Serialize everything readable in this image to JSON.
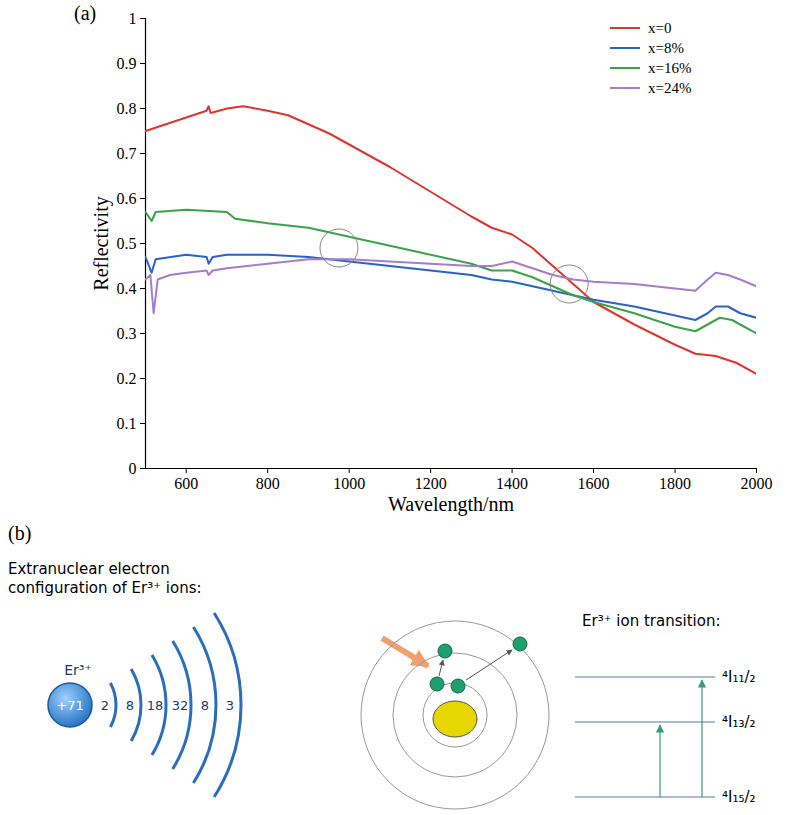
{
  "chart_data": {
    "type": "line",
    "panel": "(a)",
    "x_label": "Wavelength/nm",
    "y_label": "Reflectivity",
    "xlim": [
      500,
      2000
    ],
    "xticks": [
      600,
      800,
      1000,
      1200,
      1400,
      1600,
      1800,
      2000
    ],
    "ylim": [
      0,
      1
    ],
    "yticks": [
      0,
      0.1,
      0.2,
      0.3,
      0.4,
      0.5,
      0.6,
      0.7,
      0.8,
      0.9,
      1
    ],
    "grid": false,
    "legend": "top-right",
    "series": [
      {
        "name": "x=0",
        "color": "#e0342f",
        "x": [
          500,
          550,
          600,
          650,
          655,
          660,
          700,
          740,
          800,
          850,
          900,
          950,
          1000,
          1100,
          1200,
          1300,
          1350,
          1400,
          1450,
          1500,
          1550,
          1600,
          1700,
          1800,
          1850,
          1900,
          1950,
          2000
        ],
        "values": [
          0.75,
          0.765,
          0.78,
          0.795,
          0.805,
          0.79,
          0.8,
          0.805,
          0.795,
          0.785,
          0.765,
          0.745,
          0.72,
          0.67,
          0.615,
          0.56,
          0.535,
          0.52,
          0.49,
          0.45,
          0.41,
          0.37,
          0.32,
          0.275,
          0.255,
          0.25,
          0.235,
          0.21
        ]
      },
      {
        "name": "x=8%",
        "color": "#2a62c9",
        "x": [
          500,
          515,
          525,
          600,
          650,
          655,
          665,
          700,
          800,
          900,
          1000,
          1100,
          1200,
          1300,
          1350,
          1400,
          1450,
          1500,
          1550,
          1600,
          1700,
          1800,
          1850,
          1880,
          1900,
          1930,
          1960,
          2000
        ],
        "values": [
          0.47,
          0.435,
          0.465,
          0.475,
          0.47,
          0.455,
          0.47,
          0.475,
          0.475,
          0.47,
          0.46,
          0.45,
          0.44,
          0.43,
          0.42,
          0.415,
          0.405,
          0.395,
          0.385,
          0.375,
          0.36,
          0.34,
          0.33,
          0.345,
          0.36,
          0.36,
          0.345,
          0.335
        ]
      },
      {
        "name": "x=16%",
        "color": "#3aa34a",
        "x": [
          500,
          515,
          525,
          600,
          700,
          720,
          800,
          900,
          1000,
          1100,
          1200,
          1300,
          1350,
          1400,
          1450,
          1500,
          1550,
          1600,
          1700,
          1800,
          1850,
          1880,
          1910,
          1940,
          1970,
          2000
        ],
        "values": [
          0.57,
          0.55,
          0.57,
          0.575,
          0.57,
          0.555,
          0.545,
          0.535,
          0.515,
          0.495,
          0.475,
          0.455,
          0.44,
          0.44,
          0.425,
          0.405,
          0.385,
          0.37,
          0.345,
          0.315,
          0.305,
          0.32,
          0.335,
          0.33,
          0.315,
          0.3
        ]
      },
      {
        "name": "x=24%",
        "color": "#a77cc8",
        "x": [
          500,
          512,
          520,
          530,
          560,
          600,
          650,
          655,
          665,
          700,
          800,
          900,
          1000,
          1100,
          1200,
          1300,
          1350,
          1400,
          1450,
          1500,
          1550,
          1600,
          1700,
          1800,
          1850,
          1880,
          1900,
          1930,
          1960,
          2000
        ],
        "values": [
          0.42,
          0.43,
          0.345,
          0.42,
          0.43,
          0.435,
          0.44,
          0.43,
          0.44,
          0.445,
          0.455,
          0.465,
          0.465,
          0.46,
          0.455,
          0.45,
          0.45,
          0.46,
          0.445,
          0.43,
          0.42,
          0.415,
          0.41,
          0.4,
          0.395,
          0.42,
          0.435,
          0.43,
          0.42,
          0.405
        ]
      }
    ],
    "circled_points": [
      {
        "x": 975,
        "y": 0.49
      },
      {
        "x": 1540,
        "y": 0.41
      }
    ]
  },
  "diagram": {
    "panel": "(b)",
    "configuration": {
      "title": "Extranuclear electron configuration of Er³⁺ ions:",
      "ion": "Er³⁺",
      "nucleus": "+71",
      "shells": [
        2,
        8,
        18,
        32,
        8,
        3
      ]
    },
    "transition": {
      "title": "Er³⁺ ion transition:",
      "levels": [
        "⁴I₁₁/₂",
        "⁴I₁₃/₂",
        "⁴I₁₅/₂"
      ]
    }
  }
}
